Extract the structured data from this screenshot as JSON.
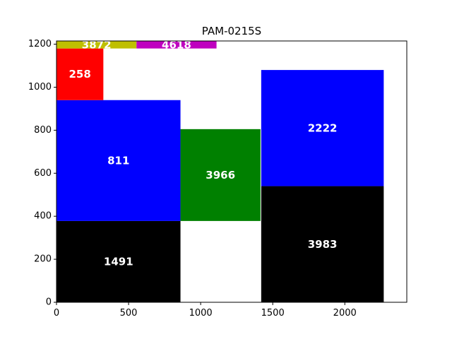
{
  "chart_data": {
    "type": "rectangles",
    "title": "PAM-0215S",
    "xlabel": "",
    "ylabel": "",
    "xlim": [
      0,
      2430
    ],
    "ylim": [
      0,
      1215
    ],
    "xticks": [
      0,
      500,
      1000,
      1500,
      2000
    ],
    "yticks": [
      0,
      200,
      400,
      600,
      800,
      1000,
      1200
    ],
    "grid": false,
    "rectangles": [
      {
        "label": "1491",
        "x0": 0,
        "y0": 0,
        "x1": 860,
        "y1": 378,
        "color": "#000000"
      },
      {
        "label": "811",
        "x0": 0,
        "y0": 378,
        "x1": 860,
        "y1": 940,
        "color": "#0000ff"
      },
      {
        "label": "3966",
        "x0": 860,
        "y0": 378,
        "x1": 1415,
        "y1": 805,
        "color": "#008000"
      },
      {
        "label": "3983",
        "x0": 1420,
        "y0": 0,
        "x1": 2270,
        "y1": 540,
        "color": "#000000"
      },
      {
        "label": "2222",
        "x0": 1420,
        "y0": 540,
        "x1": 2270,
        "y1": 1080,
        "color": "#0000ff"
      },
      {
        "label": "258",
        "x0": 0,
        "y0": 940,
        "x1": 325,
        "y1": 1180,
        "color": "#ff0000"
      },
      {
        "label": "3872",
        "x0": 0,
        "y0": 1180,
        "x1": 555,
        "y1": 1215,
        "color": "#bfbf00"
      },
      {
        "label": "4618",
        "x0": 555,
        "y0": 1180,
        "x1": 1110,
        "y1": 1215,
        "color": "#bf00bf"
      }
    ]
  }
}
